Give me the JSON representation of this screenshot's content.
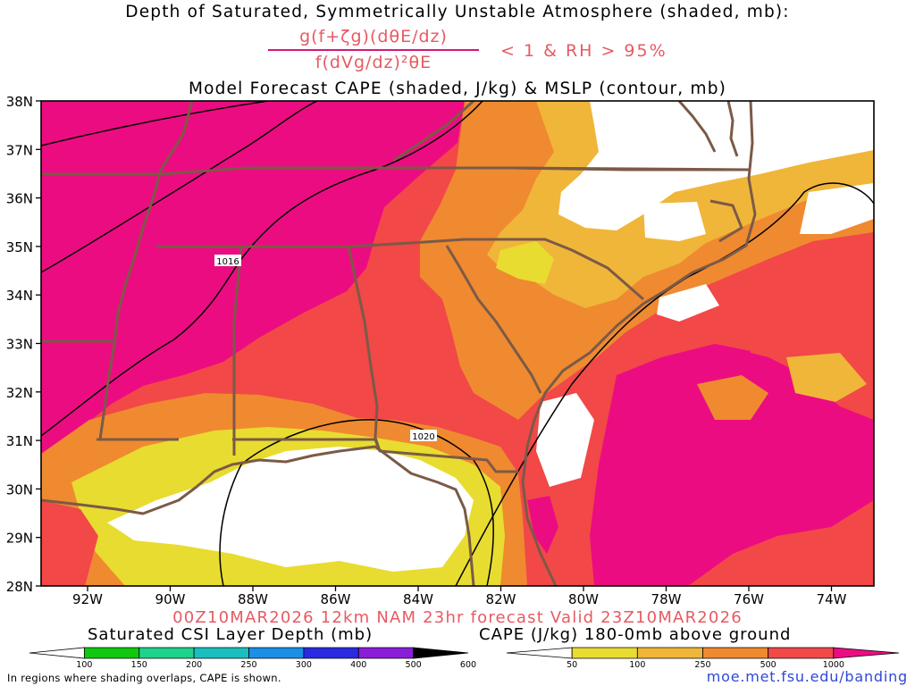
{
  "title_line1": "Depth of Saturated, Symmetrically Unstable Atmosphere (shaded, mb):",
  "formula": {
    "numerator": "g(f+ζg)(dθE/dz)",
    "denominator": "f(dVg/dz)²θE",
    "condition": "< 1 & RH > 95%"
  },
  "title_line3": "Model Forecast CAPE (shaded, J/kg) & MSLP (contour, mb)",
  "valid_line": "00Z10MAR2026 12km NAM 23hr forecast Valid 23Z10MAR2026",
  "lat_labels": [
    "38N",
    "37N",
    "36N",
    "35N",
    "34N",
    "33N",
    "32N",
    "31N",
    "30N",
    "29N",
    "28N"
  ],
  "lon_labels": [
    "92W",
    "90W",
    "88W",
    "86W",
    "84W",
    "82W",
    "80W",
    "78W",
    "76W",
    "74W"
  ],
  "contour_labels": [
    "1016",
    "1020"
  ],
  "csi_colorbar": {
    "title": "Saturated CSI Layer Depth (mb)",
    "ticks": [
      "100",
      "150",
      "200",
      "250",
      "300",
      "400",
      "500",
      "600"
    ],
    "colors": [
      "#ffffff",
      "#10c810",
      "#1ed38c",
      "#19bfbf",
      "#1b8ee6",
      "#2a2ae0",
      "#8a1ed8",
      "#000000"
    ]
  },
  "cape_colorbar": {
    "title": "CAPE (J/kg) 180-0mb above ground",
    "ticks": [
      "50",
      "100",
      "250",
      "500",
      "1000"
    ],
    "colors": [
      "#ffffff",
      "#e8dc30",
      "#f0b63a",
      "#ef8a30",
      "#f24848",
      "#ec0c82"
    ]
  },
  "footnote": "In regions where shading overlaps, CAPE is shown.",
  "url": "moe.met.fsu.edu/banding",
  "colors": {
    "cape_high": "#ec0c82",
    "cape_500": "#f24848",
    "cape_250": "#ef8a30",
    "cape_100": "#f0b63a",
    "cape_50": "#e8dc30",
    "borders": "#7b5a47",
    "isobars": "#000000",
    "accent_text": "#e75a63",
    "link": "#3048d8"
  }
}
